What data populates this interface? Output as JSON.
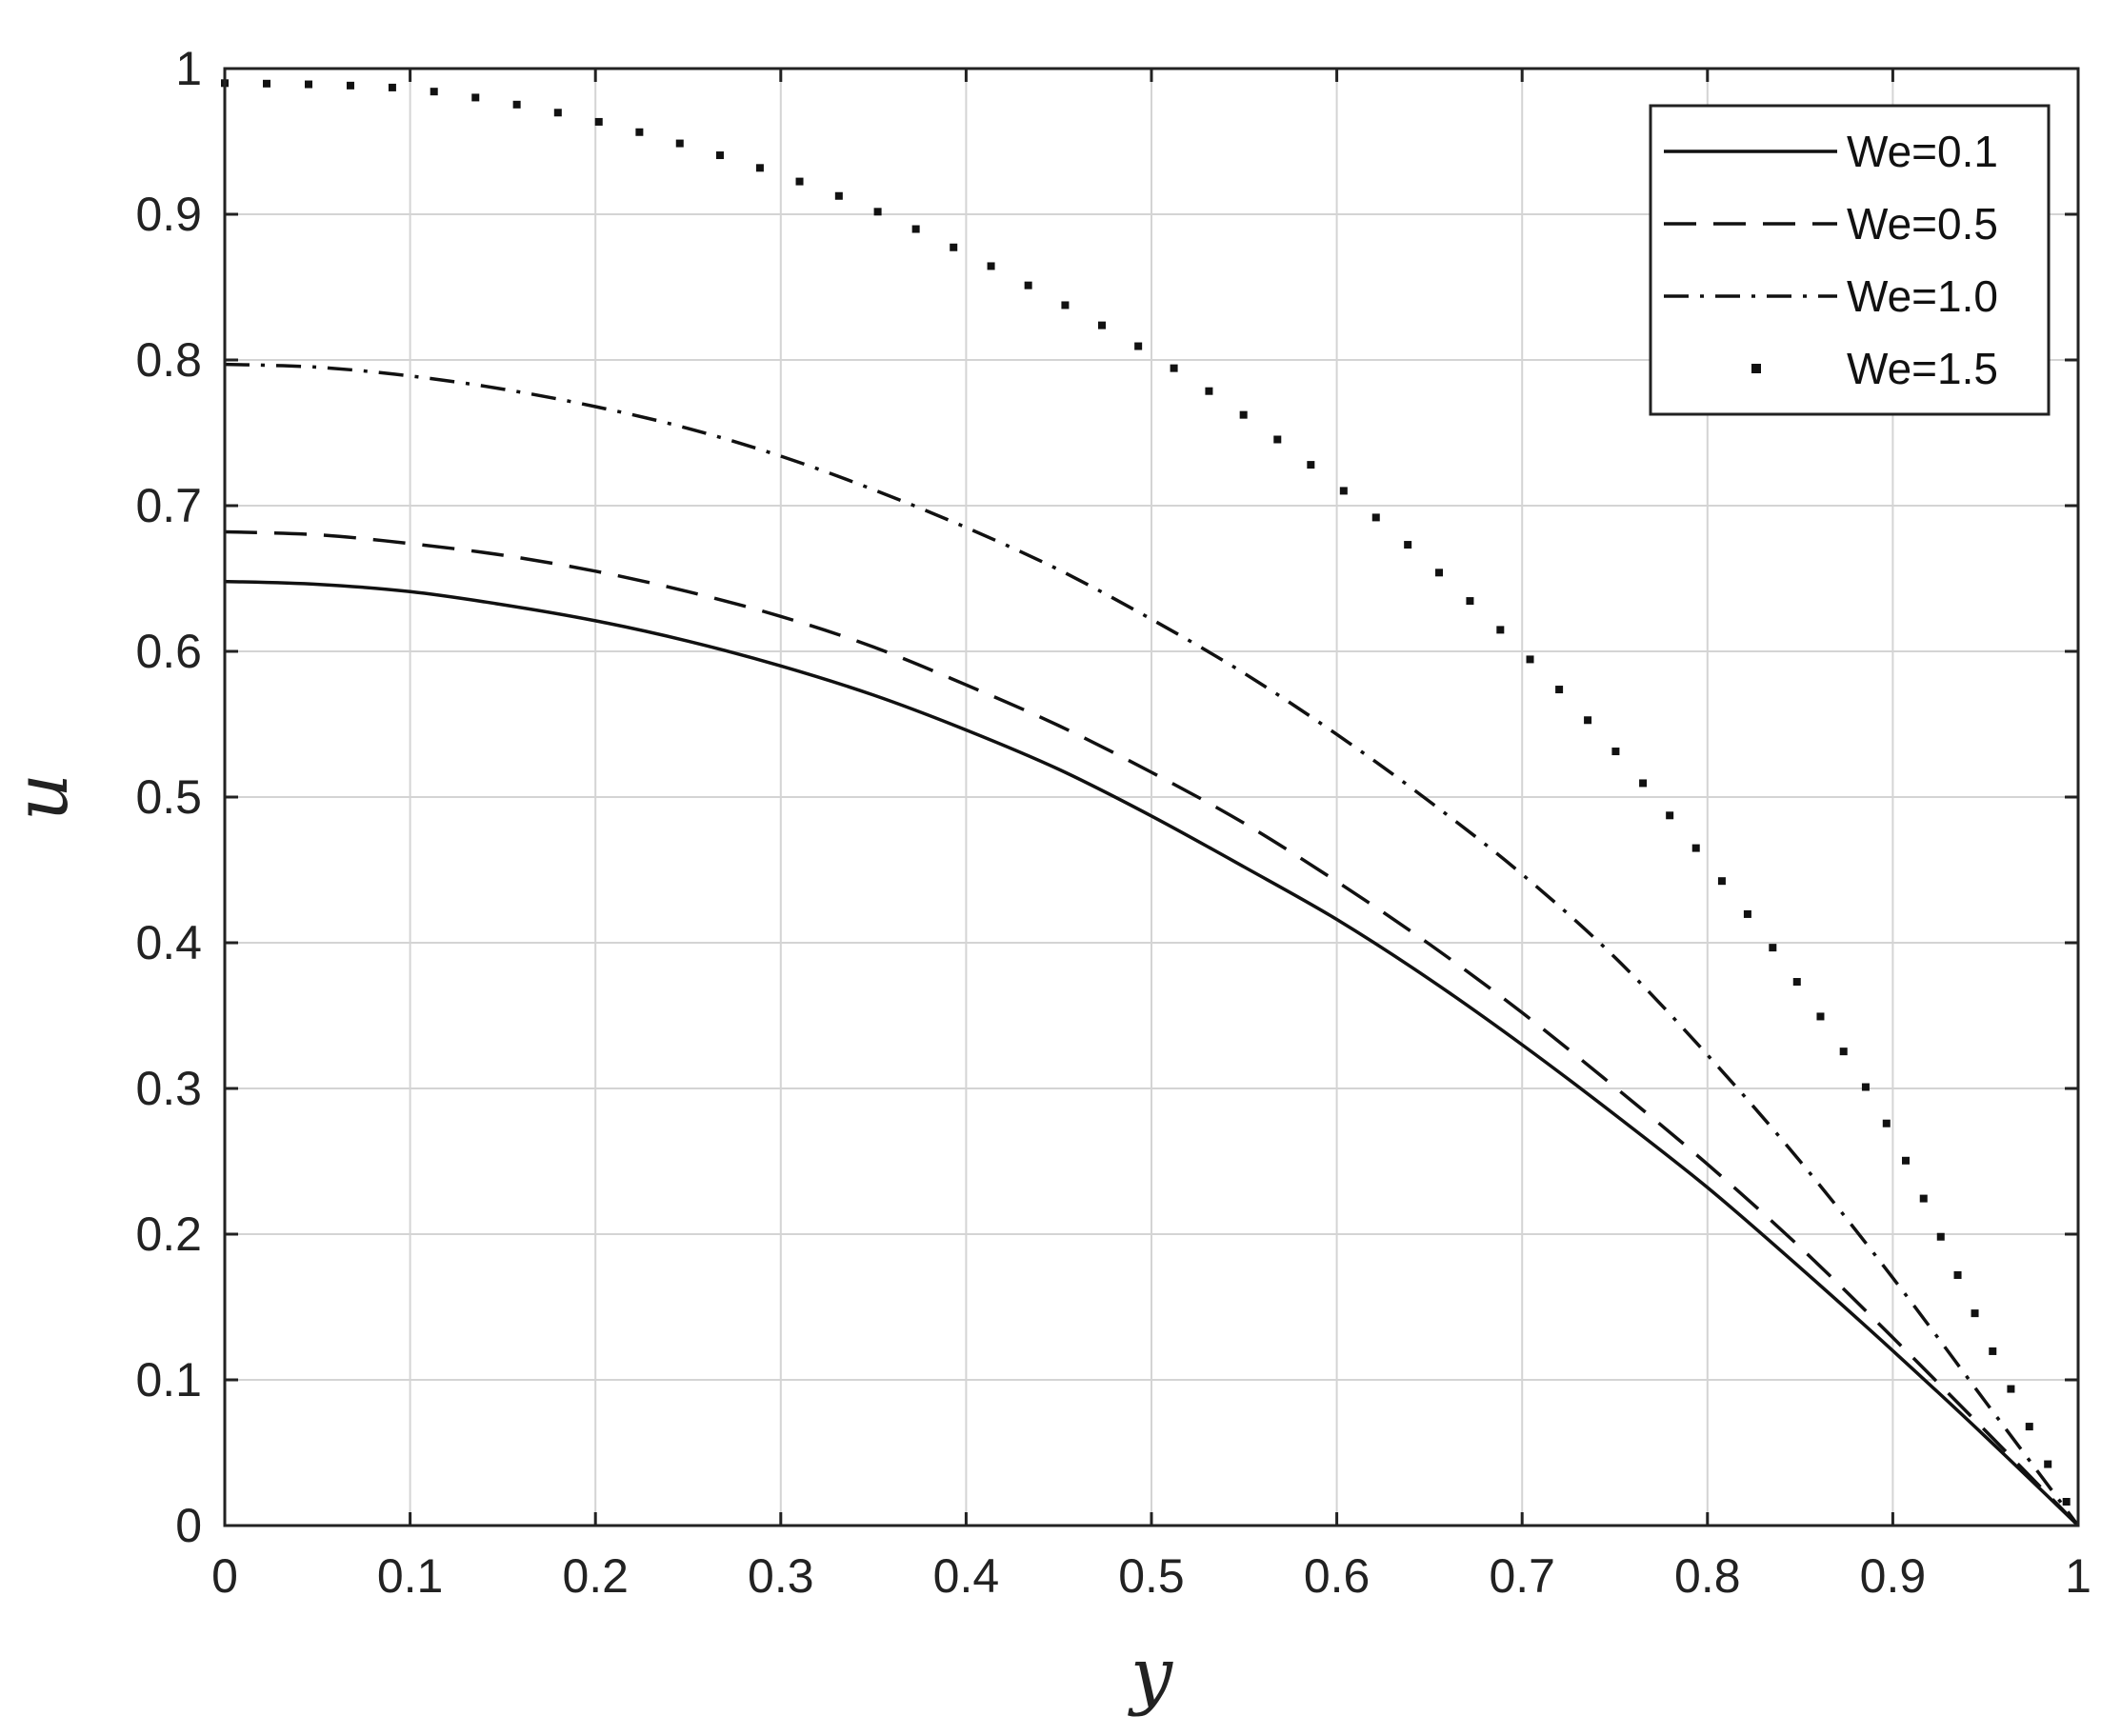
{
  "chart_data": {
    "type": "line",
    "title": "",
    "xlabel": "y",
    "ylabel": "u",
    "xlim": [
      0,
      1
    ],
    "ylim": [
      0,
      1
    ],
    "x_ticks": [
      "0",
      "0.1",
      "0.2",
      "0.3",
      "0.4",
      "0.5",
      "0.6",
      "0.7",
      "0.8",
      "0.9",
      "1"
    ],
    "y_ticks": [
      "0",
      "0.1",
      "0.2",
      "0.3",
      "0.4",
      "0.5",
      "0.6",
      "0.7",
      "0.8",
      "0.9",
      "1"
    ],
    "grid": true,
    "legend_position": "top-right",
    "x": [
      0,
      0.05,
      0.1,
      0.15,
      0.2,
      0.25,
      0.3,
      0.35,
      0.4,
      0.45,
      0.5,
      0.55,
      0.6,
      0.65,
      0.7,
      0.75,
      0.8,
      0.85,
      0.9,
      0.95,
      1
    ],
    "series": [
      {
        "name": "We=0.1",
        "style": "solid",
        "color": "#111111",
        "values": [
          0.648,
          0.646,
          0.641,
          0.632,
          0.621,
          0.607,
          0.59,
          0.57,
          0.546,
          0.519,
          0.487,
          0.452,
          0.416,
          0.375,
          0.33,
          0.282,
          0.232,
          0.177,
          0.12,
          0.061,
          0
        ]
      },
      {
        "name": "We=0.5",
        "style": "dashed",
        "color": "#111111",
        "values": [
          0.682,
          0.68,
          0.674,
          0.666,
          0.655,
          0.641,
          0.624,
          0.603,
          0.577,
          0.549,
          0.517,
          0.482,
          0.442,
          0.399,
          0.352,
          0.301,
          0.248,
          0.191,
          0.129,
          0.065,
          0
        ]
      },
      {
        "name": "We=1.0",
        "style": "dash-dot",
        "color": "#111111",
        "values": [
          0.797,
          0.795,
          0.789,
          0.78,
          0.768,
          0.753,
          0.734,
          0.711,
          0.685,
          0.656,
          0.622,
          0.585,
          0.543,
          0.497,
          0.447,
          0.39,
          0.323,
          0.25,
          0.17,
          0.085,
          0
        ]
      },
      {
        "name": "We=1.5",
        "style": "dotted",
        "color": "#111111",
        "values": [
          0.99,
          0.989,
          0.986,
          0.977,
          0.964,
          0.947,
          0.927,
          0.903,
          0.873,
          0.84,
          0.804,
          0.762,
          0.714,
          0.66,
          0.6,
          0.532,
          0.455,
          0.37,
          0.268,
          0.13,
          0
        ]
      }
    ]
  }
}
